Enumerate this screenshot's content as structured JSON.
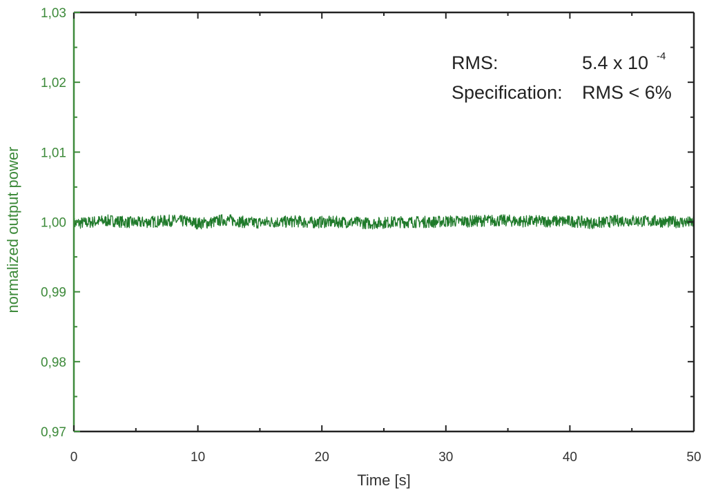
{
  "chart_data": {
    "type": "line",
    "xlabel": "Time [s]",
    "ylabel": "normalized output power",
    "xlim": [
      0,
      50
    ],
    "ylim": [
      0.97,
      1.03
    ],
    "x_ticks": [
      0,
      10,
      20,
      30,
      40,
      50
    ],
    "x_tick_labels": [
      "0",
      "10",
      "20",
      "30",
      "40",
      "50"
    ],
    "y_ticks": [
      0.97,
      0.98,
      0.99,
      1.0,
      1.01,
      1.02,
      1.03
    ],
    "y_tick_labels": [
      "0,97",
      "0,98",
      "0,99",
      "1,00",
      "1,01",
      "1,02",
      "1,03"
    ],
    "grid": false,
    "colors": {
      "series": "#1f7a2a",
      "y_axis": "#3d8a3a",
      "x_axis": "#333333"
    },
    "series": [
      {
        "x": [
          0,
          1,
          2,
          3,
          4,
          5,
          6,
          7,
          8,
          9,
          10,
          11,
          12,
          13,
          14,
          15,
          16,
          17,
          18,
          19,
          20,
          21,
          22,
          23,
          24,
          25,
          26,
          27,
          28,
          29,
          30,
          31,
          32,
          33,
          34,
          35,
          36,
          37,
          38,
          39,
          40,
          41,
          42,
          43,
          44,
          45,
          46,
          47,
          48,
          49,
          50
        ],
        "values": [
          0.9998,
          0.9999,
          1.0001,
          1.0002,
          1.0,
          0.9999,
          1.0,
          1.0001,
          1.0002,
          1.0001,
          0.9998,
          0.9999,
          1.0003,
          1.0002,
          0.9999,
          0.9999,
          1.0,
          1.0,
          1.0001,
          0.9999,
          1.0,
          1.0,
          1.0,
          0.9999,
          0.9998,
          0.9999,
          1.0,
          1.0,
          1.0,
          1.0,
          1.0001,
          1.0001,
          1.0001,
          1.0002,
          1.0002,
          1.0002,
          1.0001,
          1.0001,
          1.0001,
          1.0001,
          1.0001,
          1.0,
          0.9998,
          1.0,
          1.0002,
          1.0002,
          1.0001,
          1.0001,
          1.0,
          1.0,
          0.9999
        ]
      }
    ],
    "annotation": {
      "rms_label": "RMS:",
      "rms_value": "5.4 x 10",
      "rms_exponent": "-4",
      "spec_label": "Specification:",
      "spec_value": "RMS < 6%"
    }
  }
}
